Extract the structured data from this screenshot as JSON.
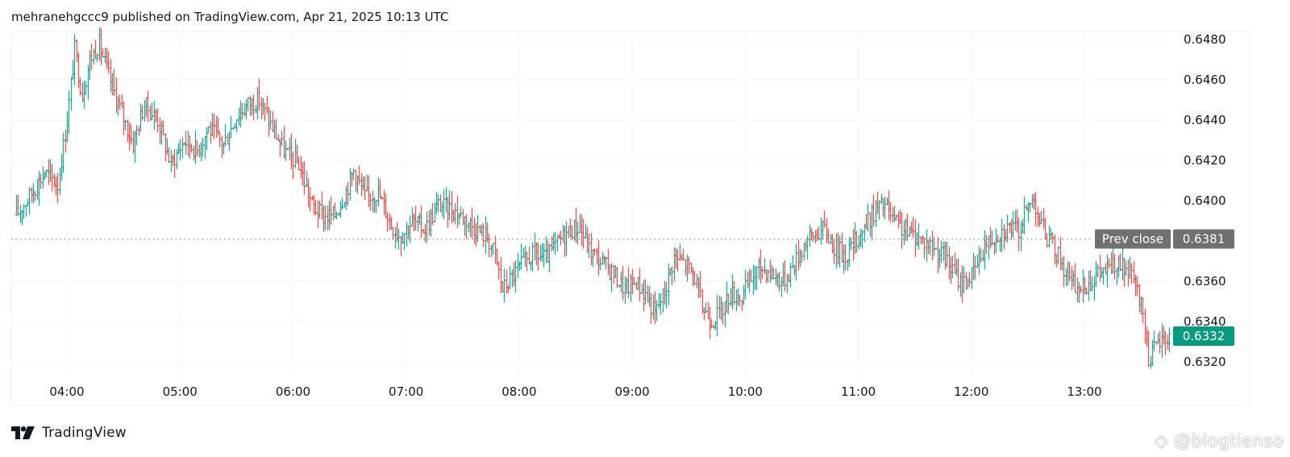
{
  "header": {
    "published_text": "mehranehgccc9 published on TradingView.com, Apr 21, 2025 10:13 UTC"
  },
  "footer": {
    "brand": "TradingView",
    "watermark": "@blogtienso"
  },
  "colors": {
    "up": "#26a69a",
    "down": "#ef5350",
    "prev_close_tag": "#707070",
    "last_price_tag": "#089981",
    "grid": "#e6e6e6",
    "text": "#131722"
  },
  "chart_data": {
    "type": "ohlc",
    "timeframe": "1m",
    "x_tick_labels": [
      "04:00",
      "05:00",
      "06:00",
      "07:00",
      "08:00",
      "09:00",
      "10:00",
      "11:00",
      "12:00",
      "13:00"
    ],
    "x_range": [
      "03:33",
      "13:45"
    ],
    "y_tick_labels": [
      "0.6480",
      "0.6460",
      "0.6440",
      "0.6420",
      "0.6400",
      "0.6360",
      "0.6340",
      "0.6320"
    ],
    "y_range": [
      0.6313,
      0.6492
    ],
    "prev_close": {
      "label": "Prev close",
      "value": 0.6381,
      "value_label": "0.6381"
    },
    "last_price": {
      "value": 0.6332,
      "value_label": "0.6332"
    },
    "path": [
      [
        "03:33",
        0.6393
      ],
      [
        "03:40",
        0.6402
      ],
      [
        "03:48",
        0.6414
      ],
      [
        "03:55",
        0.6408
      ],
      [
        "04:00",
        0.644
      ],
      [
        "04:04",
        0.6475
      ],
      [
        "04:08",
        0.6452
      ],
      [
        "04:12",
        0.647
      ],
      [
        "04:17",
        0.6478
      ],
      [
        "04:22",
        0.6462
      ],
      [
        "04:28",
        0.6446
      ],
      [
        "04:35",
        0.6428
      ],
      [
        "04:41",
        0.6448
      ],
      [
        "04:48",
        0.644
      ],
      [
        "04:55",
        0.6418
      ],
      [
        "05:02",
        0.643
      ],
      [
        "05:09",
        0.6425
      ],
      [
        "05:15",
        0.6436
      ],
      [
        "05:23",
        0.6428
      ],
      [
        "05:30",
        0.6442
      ],
      [
        "05:36",
        0.6448
      ],
      [
        "05:42",
        0.645
      ],
      [
        "05:48",
        0.6438
      ],
      [
        "05:55",
        0.6425
      ],
      [
        "06:03",
        0.6418
      ],
      [
        "06:10",
        0.6398
      ],
      [
        "06:16",
        0.6392
      ],
      [
        "06:22",
        0.6393
      ],
      [
        "06:28",
        0.6405
      ],
      [
        "06:32",
        0.6415
      ],
      [
        "06:38",
        0.6402
      ],
      [
        "06:45",
        0.6404
      ],
      [
        "06:52",
        0.6388
      ],
      [
        "06:57",
        0.6382
      ],
      [
        "07:03",
        0.639
      ],
      [
        "07:10",
        0.6386
      ],
      [
        "07:17",
        0.6398
      ],
      [
        "07:24",
        0.6396
      ],
      [
        "07:30",
        0.6392
      ],
      [
        "07:37",
        0.6386
      ],
      [
        "07:43",
        0.6382
      ],
      [
        "07:47",
        0.6373
      ],
      [
        "07:51",
        0.6356
      ],
      [
        "07:56",
        0.6362
      ],
      [
        "08:01",
        0.6368
      ],
      [
        "08:08",
        0.6374
      ],
      [
        "08:14",
        0.6371
      ],
      [
        "08:21",
        0.638
      ],
      [
        "08:27",
        0.6386
      ],
      [
        "08:32",
        0.6387
      ],
      [
        "08:37",
        0.6376
      ],
      [
        "08:44",
        0.6369
      ],
      [
        "08:50",
        0.6364
      ],
      [
        "08:56",
        0.6356
      ],
      [
        "09:02",
        0.636
      ],
      [
        "09:08",
        0.6352
      ],
      [
        "09:12",
        0.6344
      ],
      [
        "09:17",
        0.6355
      ],
      [
        "09:22",
        0.6372
      ],
      [
        "09:28",
        0.6369
      ],
      [
        "09:33",
        0.6362
      ],
      [
        "09:37",
        0.6347
      ],
      [
        "09:42",
        0.6341
      ],
      [
        "09:47",
        0.6345
      ],
      [
        "09:52",
        0.6354
      ],
      [
        "09:58",
        0.6352
      ],
      [
        "10:02",
        0.636
      ],
      [
        "10:08",
        0.6367
      ],
      [
        "10:14",
        0.6364
      ],
      [
        "10:20",
        0.636
      ],
      [
        "10:26",
        0.6369
      ],
      [
        "10:32",
        0.638
      ],
      [
        "10:38",
        0.6384
      ],
      [
        "10:42",
        0.6386
      ],
      [
        "10:47",
        0.6377
      ],
      [
        "10:53",
        0.6373
      ],
      [
        "10:59",
        0.6381
      ],
      [
        "11:04",
        0.6388
      ],
      [
        "11:09",
        0.6396
      ],
      [
        "11:14",
        0.6398
      ],
      [
        "11:19",
        0.6389
      ],
      [
        "11:25",
        0.6385
      ],
      [
        "11:31",
        0.6382
      ],
      [
        "11:38",
        0.6378
      ],
      [
        "11:45",
        0.6373
      ],
      [
        "11:50",
        0.6365
      ],
      [
        "11:55",
        0.6359
      ],
      [
        "12:01",
        0.6364
      ],
      [
        "12:07",
        0.6378
      ],
      [
        "12:14",
        0.6384
      ],
      [
        "12:20",
        0.6387
      ],
      [
        "12:25",
        0.6385
      ],
      [
        "12:29",
        0.6395
      ],
      [
        "12:33",
        0.6402
      ],
      [
        "12:36",
        0.639
      ],
      [
        "12:40",
        0.6382
      ],
      [
        "12:46",
        0.6373
      ],
      [
        "12:52",
        0.636
      ],
      [
        "12:58",
        0.6356
      ],
      [
        "13:04",
        0.6361
      ],
      [
        "13:10",
        0.6365
      ],
      [
        "13:16",
        0.6368
      ],
      [
        "13:22",
        0.6366
      ],
      [
        "13:27",
        0.6358
      ],
      [
        "13:31",
        0.6344
      ],
      [
        "13:34",
        0.6322
      ],
      [
        "13:37",
        0.6326
      ],
      [
        "13:40",
        0.633
      ],
      [
        "13:44",
        0.6332
      ]
    ]
  }
}
